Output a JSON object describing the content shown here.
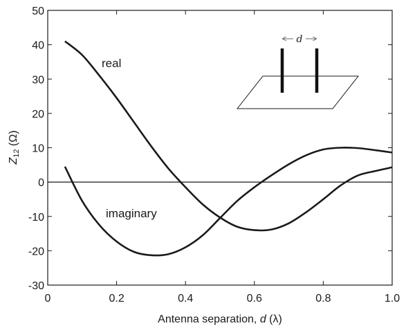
{
  "chart_data": {
    "type": "line",
    "title": "",
    "xlabel": "Antenna separation, d (λ)",
    "xlabel_parts": {
      "prefix": "Antenna separation, ",
      "variable": "d",
      "unit": " (λ)"
    },
    "ylabel": "Z12 (Ω)",
    "ylabel_parts": {
      "symbol": "Z",
      "subscript": "12",
      "unit": " (Ω)"
    },
    "xlim": [
      0,
      1.0
    ],
    "ylim": [
      -30,
      50
    ],
    "xticks": [
      0,
      0.2,
      0.4,
      0.6,
      0.8,
      1.0
    ],
    "xtick_labels": [
      "0",
      "0.2",
      "0.4",
      "0.6",
      "0.8",
      "1.0"
    ],
    "yticks": [
      -30,
      -20,
      -10,
      0,
      10,
      20,
      30,
      40,
      50
    ],
    "ytick_labels": [
      "-30",
      "-20",
      "-10",
      "0",
      "10",
      "20",
      "30",
      "40",
      "50"
    ],
    "grid": false,
    "legend": "none",
    "zero_line": true,
    "series": [
      {
        "name": "real",
        "color": "#1a1a1a",
        "x": [
          0.05,
          0.1,
          0.15,
          0.2,
          0.25,
          0.3,
          0.35,
          0.4,
          0.45,
          0.5,
          0.55,
          0.6,
          0.65,
          0.7,
          0.75,
          0.8,
          0.85,
          0.9,
          0.95,
          1.0
        ],
        "y": [
          41.0,
          37.0,
          31.0,
          24.5,
          17.5,
          10.5,
          4.0,
          -1.5,
          -6.5,
          -10.3,
          -13.0,
          -14.0,
          -13.8,
          -12.0,
          -8.8,
          -5.0,
          -1.0,
          1.9,
          3.2,
          4.3
        ]
      },
      {
        "name": "imaginary",
        "color": "#1a1a1a",
        "x": [
          0.05,
          0.1,
          0.15,
          0.2,
          0.25,
          0.3,
          0.35,
          0.4,
          0.45,
          0.5,
          0.55,
          0.6,
          0.65,
          0.7,
          0.75,
          0.8,
          0.85,
          0.9,
          0.95,
          1.0
        ],
        "y": [
          4.5,
          -5.5,
          -12.5,
          -17.3,
          -20.3,
          -21.3,
          -21.0,
          -19.0,
          -15.5,
          -10.5,
          -5.5,
          -1.5,
          2.0,
          5.2,
          7.8,
          9.5,
          10.0,
          9.9,
          9.3,
          8.6
        ]
      }
    ],
    "annotations": [
      {
        "text": "real",
        "series": "real"
      },
      {
        "text": "imaginary",
        "series": "imaginary"
      }
    ],
    "inset": {
      "description_label": "d"
    }
  }
}
